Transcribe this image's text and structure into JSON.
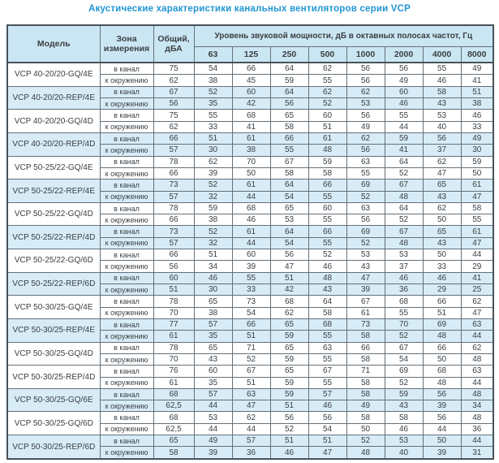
{
  "title": "Акустические характеристики канальных вентиляторов  серии VCP",
  "colors": {
    "title_text": "#2196d3",
    "header_bg": "#cbe6f3",
    "shaded_row_bg": "#d7ecf7",
    "border_dark": "#47525a",
    "cell_text": "#3a3f42"
  },
  "table": {
    "headers": {
      "model": "Модель",
      "zone": "Зона измерения",
      "total": "Общий, дБА",
      "band_group": "Уровень звуковой мощности, дБ в октавных полосах частот, Гц",
      "frequencies": [
        "63",
        "125",
        "250",
        "500",
        "1000",
        "2000",
        "4000",
        "8000"
      ]
    },
    "groups": [
      {
        "model": "VCP 40-20/20-GQ/4E",
        "shaded": false,
        "rows": [
          {
            "zone": "в канал",
            "total": "75",
            "bands": [
              "54",
              "66",
              "64",
              "62",
              "56",
              "56",
              "55",
              "49"
            ]
          },
          {
            "zone": "к окружению",
            "total": "62",
            "bands": [
              "38",
              "45",
              "59",
              "55",
              "56",
              "49",
              "46",
              "41"
            ]
          }
        ]
      },
      {
        "model": "VCP 40-20/20-REP/4E",
        "shaded": true,
        "rows": [
          {
            "zone": "в канал",
            "total": "67",
            "bands": [
              "52",
              "60",
              "64",
              "62",
              "62",
              "60",
              "58",
              "51"
            ]
          },
          {
            "zone": "к окружению",
            "total": "56",
            "bands": [
              "35",
              "42",
              "56",
              "52",
              "53",
              "46",
              "43",
              "38"
            ]
          }
        ]
      },
      {
        "model": "VCP 40-20/20-GQ/4D",
        "shaded": false,
        "rows": [
          {
            "zone": "в канал",
            "total": "75",
            "bands": [
              "55",
              "68",
              "65",
              "60",
              "56",
              "55",
              "53",
              "46"
            ]
          },
          {
            "zone": "к окружению",
            "total": "62",
            "bands": [
              "33",
              "41",
              "58",
              "51",
              "49",
              "44",
              "40",
              "33"
            ]
          }
        ]
      },
      {
        "model": "VCP 40-20/20-REP/4D",
        "shaded": true,
        "rows": [
          {
            "zone": "в канал",
            "total": "66",
            "bands": [
              "51",
              "61",
              "66",
              "61",
              "62",
              "59",
              "56",
              "49"
            ]
          },
          {
            "zone": "к окружению",
            "total": "57",
            "bands": [
              "30",
              "38",
              "55",
              "48",
              "56",
              "41",
              "37",
              "30"
            ]
          }
        ]
      },
      {
        "model": "VCP 50-25/22-GQ/4E",
        "shaded": false,
        "rows": [
          {
            "zone": "в канал",
            "total": "78",
            "bands": [
              "62",
              "70",
              "67",
              "59",
              "63",
              "64",
              "62",
              "59"
            ]
          },
          {
            "zone": "к окружению",
            "total": "66",
            "bands": [
              "39",
              "50",
              "58",
              "58",
              "55",
              "52",
              "47",
              "50"
            ]
          }
        ]
      },
      {
        "model": "VCP 50-25/22-REP/4E",
        "shaded": true,
        "rows": [
          {
            "zone": "в канал",
            "total": "73",
            "bands": [
              "52",
              "61",
              "64",
              "66",
              "69",
              "67",
              "65",
              "61"
            ]
          },
          {
            "zone": "к окружению",
            "total": "57",
            "bands": [
              "32",
              "44",
              "54",
              "55",
              "52",
              "48",
              "43",
              "47"
            ]
          }
        ]
      },
      {
        "model": "VCP 50-25/22-GQ/4D",
        "shaded": false,
        "rows": [
          {
            "zone": "в канал",
            "total": "78",
            "bands": [
              "59",
              "68",
              "65",
              "60",
              "63",
              "64",
              "62",
              "58"
            ]
          },
          {
            "zone": "к окружению",
            "total": "66",
            "bands": [
              "38",
              "46",
              "53",
              "55",
              "56",
              "52",
              "50",
              "55"
            ]
          }
        ]
      },
      {
        "model": "VCP 50-25/22-REP/4D",
        "shaded": true,
        "rows": [
          {
            "zone": "в канал",
            "total": "73",
            "bands": [
              "52",
              "61",
              "64",
              "66",
              "69",
              "67",
              "65",
              "61"
            ]
          },
          {
            "zone": "к окружению",
            "total": "57",
            "bands": [
              "32",
              "44",
              "54",
              "55",
              "52",
              "48",
              "43",
              "47"
            ]
          }
        ]
      },
      {
        "model": "VCP 50-25/22-GQ/6D",
        "shaded": false,
        "rows": [
          {
            "zone": "в канал",
            "total": "66",
            "bands": [
              "51",
              "60",
              "56",
              "52",
              "53",
              "53",
              "50",
              "44"
            ]
          },
          {
            "zone": "к окружению",
            "total": "56",
            "bands": [
              "34",
              "39",
              "47",
              "46",
              "43",
              "37",
              "33",
              "29"
            ]
          }
        ]
      },
      {
        "model": "VCP 50-25/22-REP/6D",
        "shaded": true,
        "rows": [
          {
            "zone": "в канал",
            "total": "60",
            "bands": [
              "46",
              "55",
              "51",
              "48",
              "47",
              "46",
              "46",
              "41"
            ]
          },
          {
            "zone": "к окружению",
            "total": "51",
            "bands": [
              "30",
              "33",
              "42",
              "43",
              "39",
              "36",
              "29",
              "25"
            ]
          }
        ]
      },
      {
        "model": "VCP 50-30/25-GQ/4E",
        "shaded": false,
        "rows": [
          {
            "zone": "в канал",
            "total": "78",
            "bands": [
              "65",
              "73",
              "68",
              "64",
              "67",
              "68",
              "66",
              "62"
            ]
          },
          {
            "zone": "к окружению",
            "total": "70",
            "bands": [
              "38",
              "54",
              "62",
              "58",
              "61",
              "55",
              "51",
              "47"
            ]
          }
        ]
      },
      {
        "model": "VCP 50-30/25-REP/4E",
        "shaded": true,
        "rows": [
          {
            "zone": "в канал",
            "total": "77",
            "bands": [
              "57",
              "66",
              "65",
              "68",
              "73",
              "70",
              "69",
              "63"
            ]
          },
          {
            "zone": "к окружению",
            "total": "61",
            "bands": [
              "35",
              "51",
              "59",
              "55",
              "58",
              "52",
              "48",
              "44"
            ]
          }
        ]
      },
      {
        "model": "VCP 50-30/25-GQ/4D",
        "shaded": false,
        "rows": [
          {
            "zone": "в канал",
            "total": "78",
            "bands": [
              "65",
              "71",
              "65",
              "63",
              "66",
              "67",
              "66",
              "62"
            ]
          },
          {
            "zone": "к окружению",
            "total": "70",
            "bands": [
              "43",
              "52",
              "59",
              "55",
              "58",
              "54",
              "50",
              "48"
            ]
          }
        ]
      },
      {
        "model": "VCP 50-30/25-REP/4D",
        "shaded": false,
        "rows": [
          {
            "zone": "в канал",
            "total": "76",
            "bands": [
              "60",
              "67",
              "65",
              "67",
              "71",
              "69",
              "68",
              "63"
            ]
          },
          {
            "zone": "к окружению",
            "total": "61",
            "bands": [
              "35",
              "51",
              "59",
              "55",
              "58",
              "52",
              "48",
              "44"
            ]
          }
        ]
      },
      {
        "model": "VCP 50-30/25-GQ/6E",
        "shaded": true,
        "rows": [
          {
            "zone": "в канал",
            "total": "68",
            "bands": [
              "57",
              "63",
              "59",
              "57",
              "58",
              "59",
              "56",
              "48"
            ]
          },
          {
            "zone": "к окружению",
            "total": "62,5",
            "bands": [
              "44",
              "47",
              "51",
              "46",
              "49",
              "43",
              "39",
              "34"
            ]
          }
        ]
      },
      {
        "model": "VCP 50-30/25-GQ/6D",
        "shaded": false,
        "rows": [
          {
            "zone": "в канал",
            "total": "68",
            "bands": [
              "53",
              "62",
              "56",
              "56",
              "58",
              "58",
              "56",
              "48"
            ]
          },
          {
            "zone": "к окружению",
            "total": "62,5",
            "bands": [
              "44",
              "44",
              "52",
              "54",
              "50",
              "46",
              "44",
              "36"
            ]
          }
        ]
      },
      {
        "model": "VCP 50-30/25-REP/6D",
        "shaded": true,
        "rows": [
          {
            "zone": "в канал",
            "total": "65",
            "bands": [
              "49",
              "57",
              "51",
              "51",
              "52",
              "53",
              "50",
              "44"
            ]
          },
          {
            "zone": "к окружению",
            "total": "58",
            "bands": [
              "39",
              "36",
              "46",
              "47",
              "48",
              "40",
              "39",
              "31"
            ]
          }
        ]
      }
    ]
  }
}
